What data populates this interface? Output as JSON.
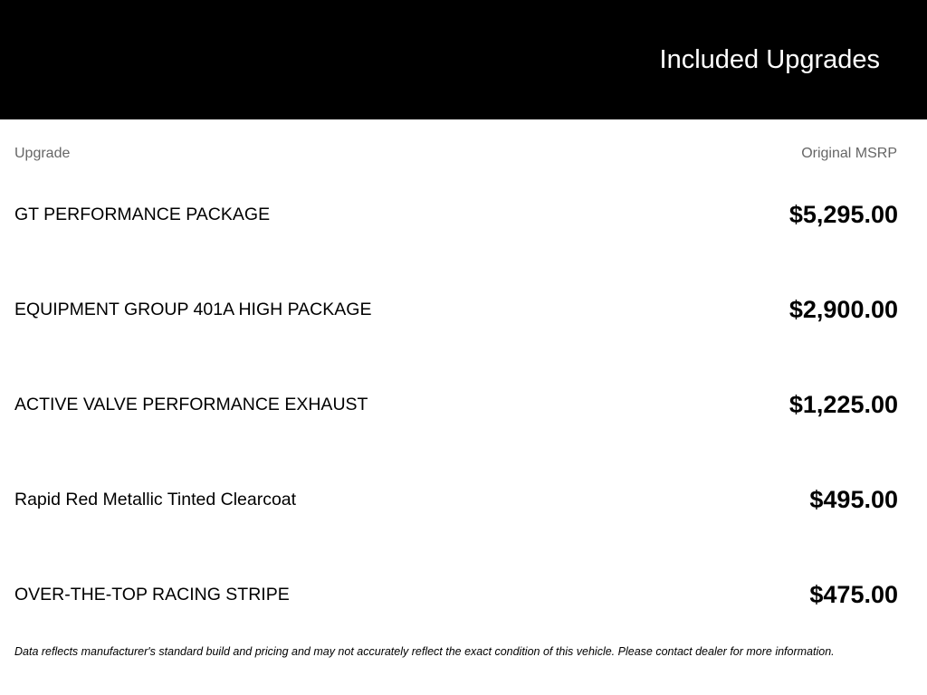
{
  "header": {
    "title": "Included Upgrades"
  },
  "table": {
    "columns": [
      "Upgrade",
      "Original MSRP"
    ],
    "rows": [
      {
        "name": "GT PERFORMANCE PACKAGE",
        "price": "$5,295.00"
      },
      {
        "name": "EQUIPMENT GROUP 401A HIGH PACKAGE",
        "price": "$2,900.00"
      },
      {
        "name": "ACTIVE VALVE PERFORMANCE EXHAUST",
        "price": "$1,225.00"
      },
      {
        "name": "Rapid Red Metallic Tinted Clearcoat",
        "price": "$495.00"
      },
      {
        "name": "OVER-THE-TOP RACING STRIPE",
        "price": "$475.00"
      }
    ]
  },
  "footer": {
    "disclaimer": "Data reflects manufacturer's standard build and pricing and may not accurately reflect the exact condition of this vehicle. Please contact dealer for more information."
  }
}
